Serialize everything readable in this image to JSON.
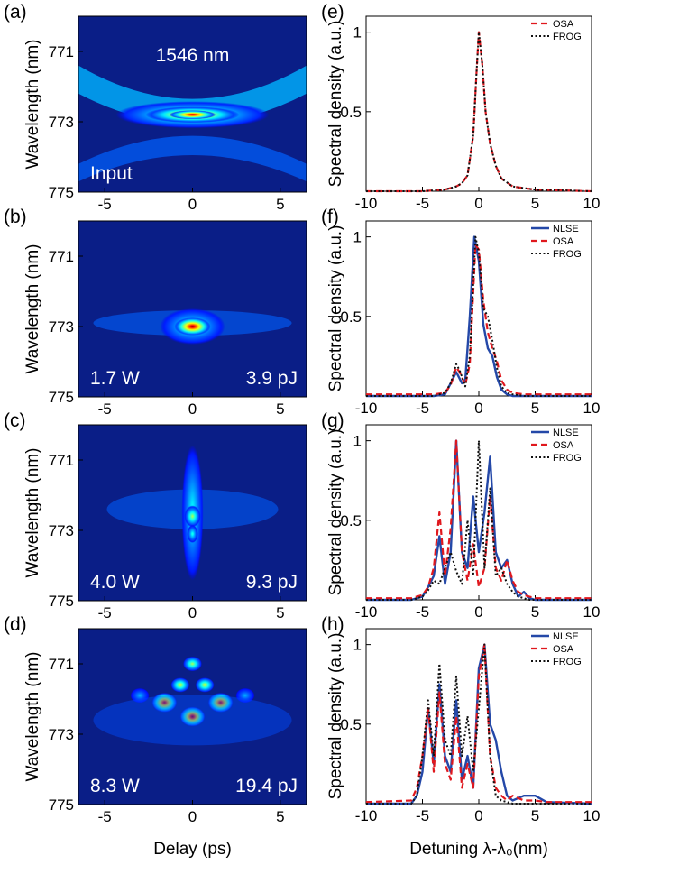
{
  "colors": {
    "nlse": "#2448a8",
    "osa": "#e0181e",
    "frog": "#111111",
    "heatmap_background": "#0a1e87",
    "heatmap_text": "#ffffff"
  },
  "left_panels": {
    "ylabel": "Wavelength (nm)",
    "xlabel": "Delay (ps)",
    "x_ticks": [
      "-5",
      "0",
      "5"
    ],
    "y_ticks": [
      "771",
      "773",
      "775"
    ],
    "colormap": "jet",
    "panels": [
      {
        "letter": "(a)",
        "text_top": "1546 nm",
        "text_left": "Input",
        "text_right": ""
      },
      {
        "letter": "(b)",
        "text_top": "",
        "text_left": "1.7 W",
        "text_right": "3.9 pJ"
      },
      {
        "letter": "(c)",
        "text_top": "",
        "text_left": "4.0 W",
        "text_right": "9.3 pJ"
      },
      {
        "letter": "(d)",
        "text_top": "",
        "text_left": "8.3 W",
        "text_right": "19.4 pJ"
      }
    ]
  },
  "right_panels": {
    "ylabel": "Spectral density (a.u.)",
    "xlabel": "Detuning λ-λ₀(nm)",
    "x_ticks": [
      "-10",
      "-5",
      "0",
      "5",
      "10"
    ],
    "y_ticks": [
      "0.5",
      "1"
    ],
    "letters": [
      "(e)",
      "(f)",
      "(g)",
      "(h)"
    ]
  },
  "chart_data": [
    {
      "type": "heatmap",
      "panel": "a",
      "xlabel": "Delay (ps)",
      "ylabel": "Wavelength (nm)",
      "xlim": [
        -6.5,
        6.5
      ],
      "ylim": [
        775,
        770
      ],
      "annotations": [
        "1546 nm",
        "Input"
      ],
      "features": [
        {
          "x": 0,
          "y": 772.8,
          "peak": 1.0,
          "shape": "chevron",
          "note": "broad V-shaped trace centered at 772.8 nm"
        }
      ]
    },
    {
      "type": "heatmap",
      "panel": "b",
      "xlabel": "Delay (ps)",
      "ylabel": "Wavelength (nm)",
      "xlim": [
        -6.5,
        6.5
      ],
      "ylim": [
        775,
        770
      ],
      "annotations": [
        "1.7 W",
        "3.9 pJ"
      ],
      "features": [
        {
          "x": 0,
          "y": 773.0,
          "peak": 1.0,
          "shape": "spot"
        }
      ]
    },
    {
      "type": "heatmap",
      "panel": "c",
      "xlabel": "Delay (ps)",
      "ylabel": "Wavelength (nm)",
      "xlim": [
        -6.5,
        6.5
      ],
      "ylim": [
        775,
        770
      ],
      "annotations": [
        "4.0 W",
        "9.3 pJ"
      ],
      "features": [
        {
          "x": 0,
          "y": 772.6,
          "peak": 0.55,
          "shape": "vertical-streak"
        }
      ]
    },
    {
      "type": "heatmap",
      "panel": "d",
      "xlabel": "Delay (ps)",
      "ylabel": "Wavelength (nm)",
      "xlim": [
        -6.5,
        6.5
      ],
      "ylim": [
        775,
        770
      ],
      "annotations": [
        "8.3 W",
        "19.4 pJ"
      ],
      "features": [
        {
          "x": 0,
          "y": 772.5,
          "peak": 1.0
        },
        {
          "x": -1.6,
          "y": 772.1,
          "peak": 0.95
        },
        {
          "x": 1.6,
          "y": 772.1,
          "peak": 0.95
        },
        {
          "x": -0.7,
          "y": 771.6,
          "peak": 0.6
        },
        {
          "x": 0.7,
          "y": 771.6,
          "peak": 0.6
        },
        {
          "x": 0,
          "y": 771.0,
          "peak": 0.55
        },
        {
          "x": -3.0,
          "y": 771.9,
          "peak": 0.3
        },
        {
          "x": 3.0,
          "y": 771.9,
          "peak": 0.3
        }
      ]
    },
    {
      "type": "line",
      "panel": "e",
      "xlabel": "",
      "ylabel": "Spectral density (a.u.)",
      "xlim": [
        -10,
        10
      ],
      "ylim": [
        0,
        1.1
      ],
      "legend": "top-right",
      "series": [
        {
          "name": "OSA",
          "style": "dashed",
          "x": [
            -10,
            -5,
            -3,
            -2,
            -1.5,
            -1,
            -0.5,
            -0.2,
            0,
            0.3,
            0.6,
            1,
            1.5,
            2,
            3,
            4,
            5,
            10
          ],
          "y": [
            0,
            0,
            0.01,
            0.03,
            0.05,
            0.1,
            0.35,
            0.75,
            1.0,
            0.8,
            0.5,
            0.3,
            0.16,
            0.08,
            0.03,
            0.02,
            0.01,
            0
          ]
        },
        {
          "name": "FROG",
          "style": "dotted",
          "x": [
            -10,
            -5,
            -3,
            -2,
            -1.5,
            -1,
            -0.5,
            -0.2,
            0,
            0.3,
            0.6,
            1,
            1.5,
            2,
            3,
            4,
            5,
            10
          ],
          "y": [
            0,
            0,
            0.01,
            0.03,
            0.05,
            0.1,
            0.35,
            0.75,
            1.0,
            0.8,
            0.5,
            0.3,
            0.16,
            0.08,
            0.03,
            0.02,
            0.01,
            0
          ]
        }
      ]
    },
    {
      "type": "line",
      "panel": "f",
      "xlabel": "",
      "ylabel": "Spectral density (a.u.)",
      "xlim": [
        -10,
        10
      ],
      "ylim": [
        0,
        1.1
      ],
      "legend": "top-right",
      "series": [
        {
          "name": "NLSE",
          "style": "solid",
          "x": [
            -10,
            -4,
            -3,
            -2.5,
            -2,
            -1.5,
            -1.2,
            -0.8,
            -0.4,
            0,
            0.4,
            0.8,
            1.2,
            1.6,
            2,
            2.5,
            3,
            4,
            10
          ],
          "y": [
            0,
            0,
            0.01,
            0.08,
            0.15,
            0.08,
            0.1,
            0.5,
            1.0,
            0.85,
            0.45,
            0.3,
            0.25,
            0.12,
            0.04,
            0.01,
            0,
            0,
            0
          ]
        },
        {
          "name": "OSA",
          "style": "dashed",
          "x": [
            -10,
            -4,
            -3,
            -2.5,
            -2,
            -1.7,
            -1.2,
            -0.8,
            -0.3,
            0,
            0.4,
            0.8,
            1.2,
            1.6,
            2,
            2.5,
            3,
            4,
            10
          ],
          "y": [
            0.01,
            0.01,
            0.02,
            0.07,
            0.18,
            0.15,
            0.07,
            0.2,
            0.95,
            0.92,
            0.6,
            0.4,
            0.3,
            0.22,
            0.1,
            0.04,
            0.02,
            0.01,
            0.01
          ]
        },
        {
          "name": "FROG",
          "style": "dotted",
          "x": [
            -10,
            -4,
            -3,
            -2.5,
            -2,
            -1.7,
            -1.2,
            -0.8,
            -0.3,
            0,
            0.4,
            0.8,
            1.2,
            1.6,
            2,
            2.5,
            3,
            4,
            10
          ],
          "y": [
            0,
            0,
            0.02,
            0.08,
            0.2,
            0.16,
            0.06,
            0.25,
            1.0,
            0.9,
            0.55,
            0.5,
            0.35,
            0.18,
            0.06,
            0.02,
            0.01,
            0,
            0
          ]
        }
      ]
    },
    {
      "type": "line",
      "panel": "g",
      "xlabel": "",
      "ylabel": "Spectral density (a.u.)",
      "xlim": [
        -10,
        10
      ],
      "ylim": [
        0,
        1.1
      ],
      "legend": "top-right",
      "series": [
        {
          "name": "NLSE",
          "style": "solid",
          "x": [
            -10,
            -6,
            -5,
            -4.5,
            -4,
            -3.5,
            -3,
            -2.5,
            -2,
            -1.5,
            -1,
            -0.5,
            0,
            0.5,
            1,
            1.5,
            2,
            2.5,
            3,
            3.5,
            4,
            4.5,
            5,
            6,
            10
          ],
          "y": [
            0,
            0,
            0.02,
            0.08,
            0.15,
            0.4,
            0.1,
            0.3,
            1.0,
            0.3,
            0.2,
            0.65,
            0.3,
            0.55,
            0.9,
            0.3,
            0.2,
            0.25,
            0.1,
            0.02,
            0.05,
            0.01,
            0,
            0,
            0
          ]
        },
        {
          "name": "OSA",
          "style": "dashed",
          "x": [
            -10,
            -6,
            -5,
            -4.5,
            -4,
            -3.5,
            -3,
            -2.5,
            -2,
            -1.5,
            -1,
            -0.5,
            0,
            0.5,
            1,
            1.5,
            2,
            2.5,
            3,
            3.5,
            4,
            4.5,
            5,
            6,
            10
          ],
          "y": [
            0.01,
            0.01,
            0.03,
            0.08,
            0.2,
            0.55,
            0.15,
            0.45,
            1.0,
            0.3,
            0.12,
            0.35,
            0.08,
            0.2,
            0.65,
            0.2,
            0.12,
            0.25,
            0.12,
            0.05,
            0.03,
            0.02,
            0.01,
            0.01,
            0.01
          ]
        },
        {
          "name": "FROG",
          "style": "dotted",
          "x": [
            -10,
            -6,
            -5,
            -4.5,
            -4,
            -3.5,
            -3,
            -2.5,
            -2,
            -1.5,
            -1,
            -0.5,
            0,
            0.5,
            1,
            1.5,
            2,
            2.5,
            3,
            3.5,
            4,
            4.5,
            5,
            6,
            10
          ],
          "y": [
            0,
            0,
            0.02,
            0.06,
            0.12,
            0.1,
            0.2,
            0.3,
            0.18,
            0.1,
            0.5,
            0.15,
            1.0,
            0.2,
            0.7,
            0.15,
            0.2,
            0.1,
            0.05,
            0.02,
            0.01,
            0,
            0,
            0,
            0
          ]
        }
      ]
    },
    {
      "type": "line",
      "panel": "h",
      "xlabel": "Detuning λ-λ₀(nm)",
      "ylabel": "Spectral density (a.u.)",
      "xlim": [
        -10,
        10
      ],
      "ylim": [
        0,
        1.1
      ],
      "legend": "top-right",
      "series": [
        {
          "name": "NLSE",
          "style": "solid",
          "x": [
            -10,
            -6,
            -5.5,
            -5,
            -4.5,
            -4,
            -3.5,
            -3,
            -2.5,
            -2,
            -1.5,
            -1,
            -0.5,
            0,
            0.5,
            1,
            1.5,
            2,
            2.5,
            3,
            4,
            5,
            6,
            10
          ],
          "y": [
            0,
            0,
            0.05,
            0.2,
            0.6,
            0.25,
            0.75,
            0.3,
            0.2,
            0.65,
            0.15,
            0.3,
            0.1,
            0.85,
            1.0,
            0.5,
            0.4,
            0.2,
            0.05,
            0.02,
            0.05,
            0.05,
            0.01,
            0
          ]
        },
        {
          "name": "OSA",
          "style": "dashed",
          "x": [
            -10,
            -6,
            -5.5,
            -5,
            -4.5,
            -4,
            -3.5,
            -3,
            -2.5,
            -2,
            -1.5,
            -1,
            -0.5,
            0,
            0.5,
            1,
            1.5,
            2,
            2.5,
            3,
            4,
            5,
            6,
            10
          ],
          "y": [
            0.01,
            0.02,
            0.1,
            0.3,
            0.6,
            0.2,
            0.7,
            0.25,
            0.15,
            0.55,
            0.1,
            0.25,
            0.1,
            0.8,
            1.0,
            0.3,
            0.1,
            0.05,
            0.02,
            0.05,
            0.02,
            0.02,
            0.01,
            0.01
          ]
        },
        {
          "name": "FROG",
          "style": "dotted",
          "x": [
            -10,
            -6,
            -5.5,
            -5,
            -4.5,
            -4,
            -3.5,
            -3,
            -2.5,
            -2,
            -1.5,
            -1,
            -0.5,
            0,
            0.5,
            1,
            1.5,
            2,
            2.5,
            3,
            4,
            5,
            6,
            10
          ],
          "y": [
            0,
            0,
            0.05,
            0.3,
            0.65,
            0.3,
            0.88,
            0.4,
            0.3,
            0.8,
            0.3,
            0.55,
            0.2,
            0.6,
            1.0,
            0.3,
            0.05,
            0.02,
            0.01,
            0,
            0,
            0,
            0,
            0
          ]
        }
      ]
    }
  ]
}
